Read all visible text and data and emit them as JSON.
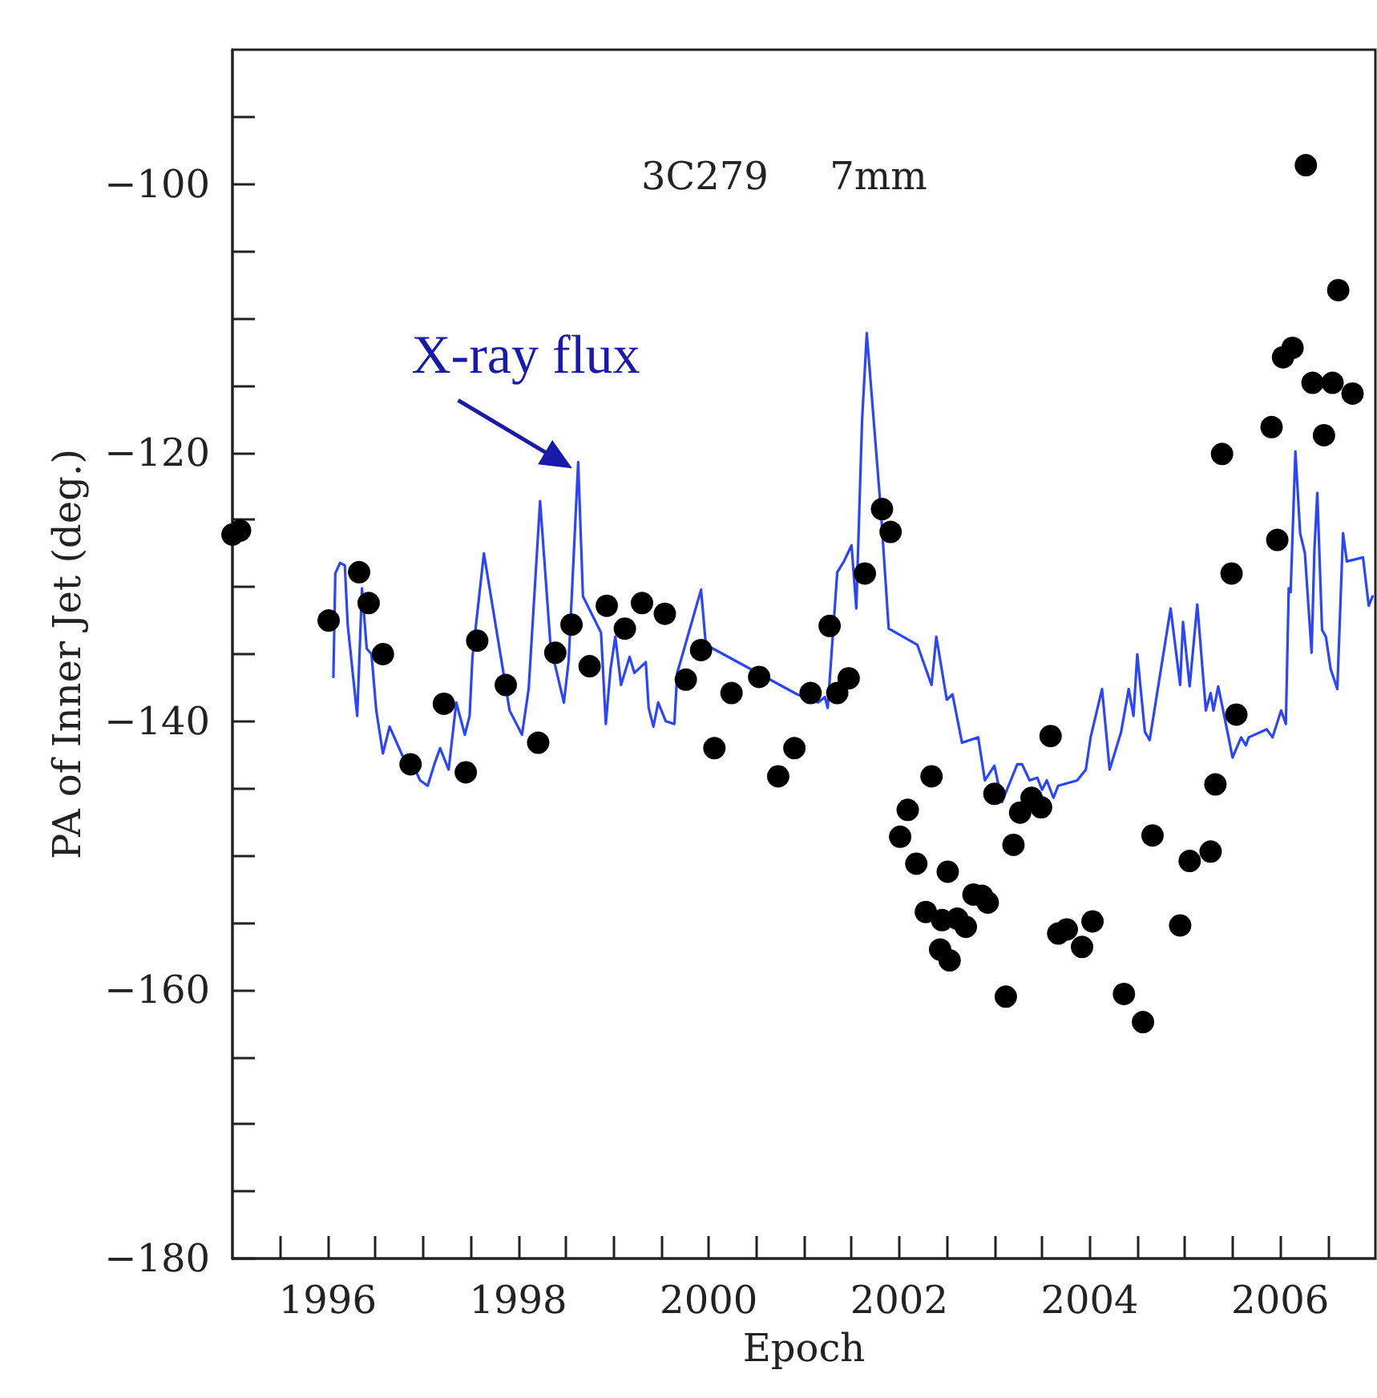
{
  "chart_data": {
    "type": "scatter",
    "xlabel": "Epoch",
    "ylabel": "PA of Inner Jet (deg.)",
    "annotations": [
      "3C279     7mm",
      {
        "text": "X-ray flux",
        "x": 1998.63,
        "y": -120.7
      }
    ],
    "xlim": [
      1995,
      2007
    ],
    "xticks": [
      {
        "value": 1995.5,
        "label": null
      },
      1996,
      {
        "value": 1996.5,
        "label": null
      },
      {
        "value": 1997,
        "label": null
      },
      {
        "value": 1997.5,
        "label": null
      },
      1998,
      {
        "value": 1998.5,
        "label": null
      },
      {
        "value": 1999,
        "label": null
      },
      {
        "value": 1999.5,
        "label": null
      },
      2000,
      {
        "value": 2000.5,
        "label": null
      },
      {
        "value": 2001,
        "label": null
      },
      {
        "value": 2001.5,
        "label": null
      },
      2002,
      {
        "value": 2002.5,
        "label": null
      },
      {
        "value": 2003,
        "label": null
      },
      {
        "value": 2003.5,
        "label": null
      },
      2004,
      {
        "value": 2004.5,
        "label": null
      },
      {
        "value": 2005,
        "label": null
      },
      {
        "value": 2005.5,
        "label": null
      },
      2006,
      {
        "value": 2006.5,
        "label": null
      }
    ],
    "ylim": [
      -180,
      -90
    ],
    "yticks": [
      {
        "value": -180,
        "label": "−180"
      },
      {
        "value": -175,
        "label": null
      },
      {
        "value": -170,
        "label": null
      },
      {
        "value": -165,
        "label": null
      },
      {
        "value": -160,
        "label": "−160"
      },
      {
        "value": -155,
        "label": null
      },
      {
        "value": -150,
        "label": null
      },
      {
        "value": -145,
        "label": null
      },
      {
        "value": -140,
        "label": "−140"
      },
      {
        "value": -135,
        "label": null
      },
      {
        "value": -130,
        "label": null
      },
      {
        "value": -125,
        "label": null
      },
      {
        "value": -120,
        "label": "−120"
      },
      {
        "value": -115,
        "label": null
      },
      {
        "value": -110,
        "label": null
      },
      {
        "value": -105,
        "label": null
      },
      {
        "value": -100,
        "label": "−100"
      },
      {
        "value": -95,
        "label": null
      }
    ],
    "grid": false,
    "series": [
      {
        "type": "line",
        "color": "#2b45ff",
        "marker": "none",
        "line_style": "solid",
        "x": [
          1996.06,
          1996.08,
          1996.13,
          1996.18,
          1996.21,
          1996.31,
          1996.36,
          1996.41,
          1996.46,
          1996.51,
          1996.58,
          1996.65,
          1996.85,
          1996.9,
          1996.97,
          1997.05,
          1997.12,
          1997.18,
          1997.27,
          1997.35,
          1997.44,
          1997.49,
          1997.52,
          1997.64,
          1997.91,
          1998.04,
          1998.11,
          1998.23,
          1998.34,
          1998.48,
          1998.53,
          1998.63,
          1998.68,
          1998.87,
          1998.92,
          1998.97,
          1999.02,
          1999.08,
          1999.17,
          1999.22,
          1999.34,
          1999.37,
          1999.42,
          1999.47,
          1999.55,
          1999.64,
          1999.67,
          1999.92,
          1999.97,
          2000.93,
          2001.15,
          2001.22,
          2001.25,
          2001.35,
          2001.42,
          2001.5,
          2001.55,
          2001.61,
          2001.66,
          2001.81,
          2001.89,
          2002.19,
          2002.34,
          2002.39,
          2002.5,
          2002.56,
          2002.66,
          2002.83,
          2002.9,
          2003.0,
          2003.08,
          2003.24,
          2003.29,
          2003.37,
          2003.45,
          2003.5,
          2003.55,
          2003.62,
          2003.67,
          2003.87,
          2003.96,
          2004.01,
          2004.13,
          2004.21,
          2004.33,
          2004.41,
          2004.46,
          2004.5,
          2004.58,
          2004.63,
          2004.85,
          2004.95,
          2004.98,
          2005.05,
          2005.13,
          2005.22,
          2005.27,
          2005.3,
          2005.35,
          2005.47,
          2005.5,
          2005.59,
          2005.64,
          2005.67,
          2005.86,
          2005.92,
          2006.01,
          2006.06,
          2006.09,
          2006.11,
          2006.16,
          2006.21,
          2006.26,
          2006.33,
          2006.36,
          2006.39,
          2006.44,
          2006.48,
          2006.53,
          2006.6,
          2006.66,
          2006.7,
          2006.87,
          2006.93,
          2006.97
        ],
        "values": [
          -136.7,
          -129.0,
          -128.2,
          -128.4,
          -132.8,
          -139.6,
          -130.1,
          -134.6,
          -135.0,
          -139.2,
          -142.4,
          -140.4,
          -143.6,
          -143.3,
          -144.4,
          -144.8,
          -143.2,
          -142.0,
          -143.6,
          -138.6,
          -141.0,
          -139.6,
          -135.2,
          -127.5,
          -139.2,
          -141.0,
          -137.6,
          -123.6,
          -134.4,
          -138.6,
          -135.5,
          -120.7,
          -130.7,
          -133.4,
          -140.2,
          -136.1,
          -133.7,
          -137.3,
          -135.2,
          -136.4,
          -135.6,
          -139.0,
          -140.4,
          -138.6,
          -140.0,
          -140.2,
          -136.4,
          -130.2,
          -134.3,
          -138.0,
          -138.6,
          -138.2,
          -139.0,
          -128.9,
          -128.1,
          -126.9,
          -131.6,
          -117.7,
          -111.1,
          -124.5,
          -133.1,
          -134.3,
          -137.3,
          -133.7,
          -138.4,
          -138.0,
          -141.6,
          -141.2,
          -144.4,
          -143.3,
          -146.0,
          -143.2,
          -143.2,
          -144.4,
          -144.2,
          -145.1,
          -144.4,
          -145.7,
          -144.8,
          -144.4,
          -143.6,
          -141.2,
          -137.6,
          -143.6,
          -140.8,
          -137.6,
          -139.6,
          -135.0,
          -140.8,
          -141.4,
          -131.6,
          -137.3,
          -132.6,
          -137.4,
          -131.3,
          -139.2,
          -137.9,
          -139.2,
          -137.4,
          -141.6,
          -142.7,
          -141.2,
          -141.8,
          -141.2,
          -140.6,
          -141.2,
          -139.2,
          -140.2,
          -130.1,
          -130.4,
          -119.9,
          -126.0,
          -127.5,
          -134.9,
          -127.2,
          -123.0,
          -133.2,
          -133.7,
          -136.1,
          -137.6,
          -126.0,
          -128.1,
          -127.8,
          -131.4,
          -130.7
        ]
      },
      {
        "color": "#000000",
        "marker": "circle",
        "x": [
          1995.0,
          1995.08,
          1996.01,
          1996.33,
          1996.43,
          1996.58,
          1996.87,
          1997.22,
          1997.45,
          1997.57,
          1997.87,
          1998.21,
          1998.39,
          1998.56,
          1998.75,
          1998.93,
          1999.12,
          1999.3,
          1999.54,
          1999.76,
          1999.92,
          2000.06,
          2000.24,
          2000.53,
          2000.73,
          2000.9,
          2001.07,
          2001.27,
          2001.35,
          2001.47,
          2001.64,
          2001.82,
          2001.91,
          2002.01,
          2002.09,
          2002.18,
          2002.28,
          2002.34,
          2002.43,
          2002.45,
          2002.51,
          2002.53,
          2002.61,
          2002.7,
          2002.78,
          2002.87,
          2002.93,
          2003.0,
          2003.12,
          2003.2,
          2003.27,
          2003.39,
          2003.49,
          2003.59,
          2003.67,
          2003.76,
          2003.92,
          2004.03,
          2004.36,
          2004.56,
          2004.66,
          2004.95,
          2005.05,
          2005.27,
          2005.32,
          2005.39,
          2005.49,
          2005.54,
          2005.91,
          2005.97,
          2006.03,
          2006.13,
          2006.27,
          2006.34,
          2006.46,
          2006.55,
          2006.61,
          2006.76
        ],
        "values": [
          -126.1,
          -125.8,
          -132.5,
          -128.9,
          -131.2,
          -135.0,
          -143.2,
          -138.7,
          -143.8,
          -134.0,
          -137.3,
          -141.6,
          -134.9,
          -132.8,
          -135.9,
          -131.4,
          -133.1,
          -131.2,
          -132.0,
          -136.9,
          -134.7,
          -142.0,
          -137.9,
          -136.7,
          -144.1,
          -142.0,
          -137.9,
          -132.9,
          -137.9,
          -136.8,
          -129.0,
          -124.2,
          -125.9,
          -148.6,
          -146.6,
          -150.6,
          -154.2,
          -144.1,
          -157.0,
          -154.8,
          -151.2,
          -157.8,
          -154.7,
          -155.3,
          -152.9,
          -153.0,
          -153.5,
          -145.4,
          -160.5,
          -149.2,
          -146.8,
          -145.7,
          -146.4,
          -141.1,
          -155.8,
          -155.5,
          -156.8,
          -154.9,
          -160.3,
          -162.4,
          -148.5,
          -155.2,
          -150.4,
          -149.7,
          -144.7,
          -120.1,
          -129.0,
          -139.5,
          -118.1,
          -126.5,
          -112.9,
          -112.2,
          -98.6,
          -114.8,
          -118.7,
          -114.8,
          -107.9,
          -115.6
        ]
      }
    ]
  }
}
